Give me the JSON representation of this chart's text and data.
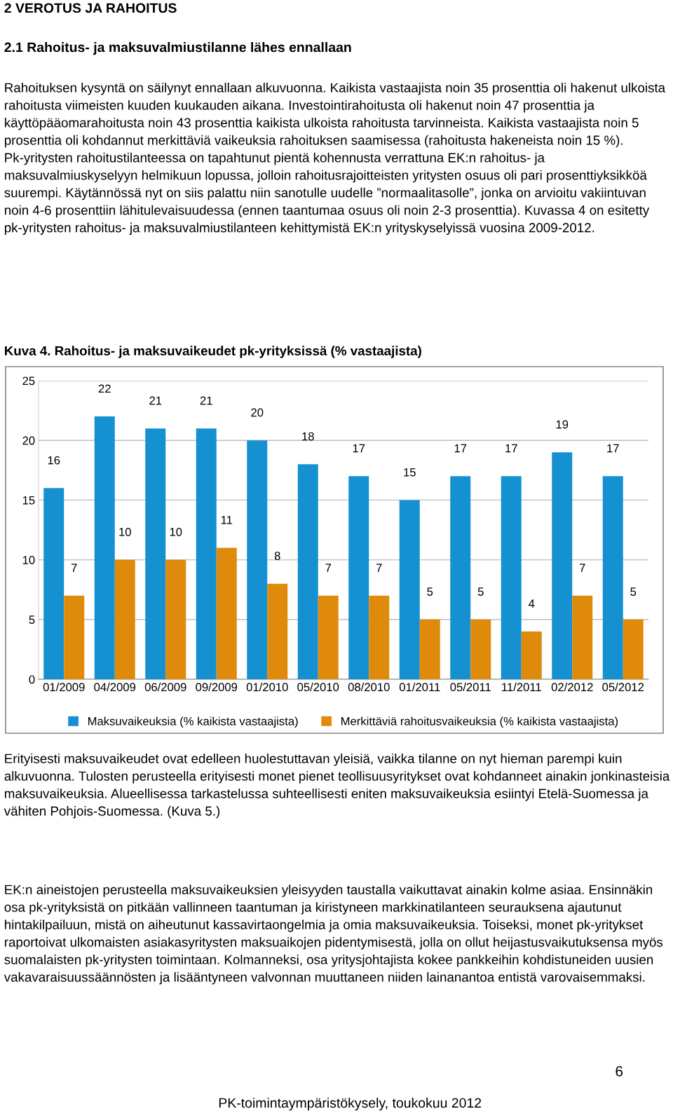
{
  "chart_data": {
    "type": "bar",
    "title": "Kuva 4. Rahoitus- ja maksuvaikeudet pk-yrityksissä (% vastaajista)",
    "categories": [
      "01/2009",
      "04/2009",
      "06/2009",
      "09/2009",
      "01/2010",
      "05/2010",
      "08/2010",
      "01/2011",
      "05/2011",
      "11/2011",
      "02/2012",
      "05/2012"
    ],
    "series": [
      {
        "name": "Maksuvaikeuksia (% kaikista vastaajista)",
        "color": "#1590d1",
        "values": [
          16,
          22,
          21,
          21,
          20,
          18,
          17,
          15,
          17,
          17,
          19,
          17
        ]
      },
      {
        "name": "Merkittäviä rahoitusvaikeuksia (% kaikista vastaajista)",
        "color": "#e08a0c",
        "values": [
          7,
          10,
          10,
          11,
          8,
          7,
          7,
          5,
          5,
          4,
          7,
          5
        ]
      }
    ],
    "ylim": [
      0,
      25
    ],
    "yticks": [
      0,
      5,
      10,
      15,
      20,
      25
    ],
    "grid": "y",
    "legend": "bottom",
    "data_labels": true,
    "annotations": [
      "2 VEROTUS JA RAHOITUS",
      "2.1 Rahoitus- ja maksuvalmiustilanne lähes ennallaan",
      "Rahoituksen kysyntä on säilynyt ennallaan alkuvuonna. Kaikista vastaajista noin 35 prosenttia oli hakenut ulkoista rahoitusta viimeisten kuuden kuukauden aikana. Investointirahoitusta oli hakenut noin 47 prosenttia ja käyttöpääomarahoitusta noin 43 prosenttia kaikista ulkoista rahoitusta tarvinneista. Kaikista vastaajista noin 5 prosenttia oli kohdannut merkittäviä vaikeuksia rahoituksen saamisessa (rahoitusta hakeneista noin 15 %). Pk-yritysten rahoitustilanteessa on tapahtunut pientä kohennusta verrattuna EK:n rahoitus- ja maksuvalmiuskyselyyn helmikuun lopussa, jolloin rahoitusrajoitteisten yritysten osuus oli pari prosenttiyksikköä suurempi. Käytännössä nyt on siis palattu niin sanotulle uudelle ”normaalitasolle”, jonka on arvioitu vakiintuvan noin 4-6 prosenttiin lähitulevaisuudessa (ennen taantumaa osuus oli noin 2-3 prosenttia). Kuvassa 4 on esitetty pk-yritysten rahoitus- ja maksuvalmiustilanteen kehittymistä EK:n yrityskyselyissä vuosina 2009-2012.",
      "Erityisesti maksuvaikeudet ovat edelleen huolestuttavan yleisiä, vaikka tilanne on nyt hieman parempi kuin alkuvuonna. Tulosten perusteella erityisesti monet pienet teollisuusyritykset ovat kohdanneet ainakin jonkinasteisia maksuvaikeuksia. Alueellisessa tarkastelussa suhteellisesti eniten maksuvaikeuksia esiintyi Etelä-Suomessa ja vähiten Pohjois-Suomessa. (Kuva 5.)",
      "EK:n aineistojen perusteella maksuvaikeuksien yleisyyden taustalla vaikuttavat ainakin kolme asiaa. Ensinnäkin osa pk-yrityksistä on pitkään vallinneen taantuman ja kiristyneen markkinatilanteen seurauksena ajautunut hintakilpailuun, mistä on aiheutunut kassavirtaongelmia ja omia maksuvaikeuksia. Toiseksi, monet pk-yritykset raportoivat ulkomaisten asiakasyritysten maksuaikojen pidentymisestä, jolla on ollut heijastusvaikutuksensa myös suomalaisten pk-yritysten toimintaan. Kolmanneksi, osa yritysjohtajista kokee pankkeihin kohdistuneiden uusien vakavaraisuussäännösten ja lisääntyneen valvonnan muuttaneen niiden lainanantoa entistä varovaisemmaksi.",
      "6",
      "PK-toimintaympäristökysely, toukokuu 2012"
    ]
  }
}
